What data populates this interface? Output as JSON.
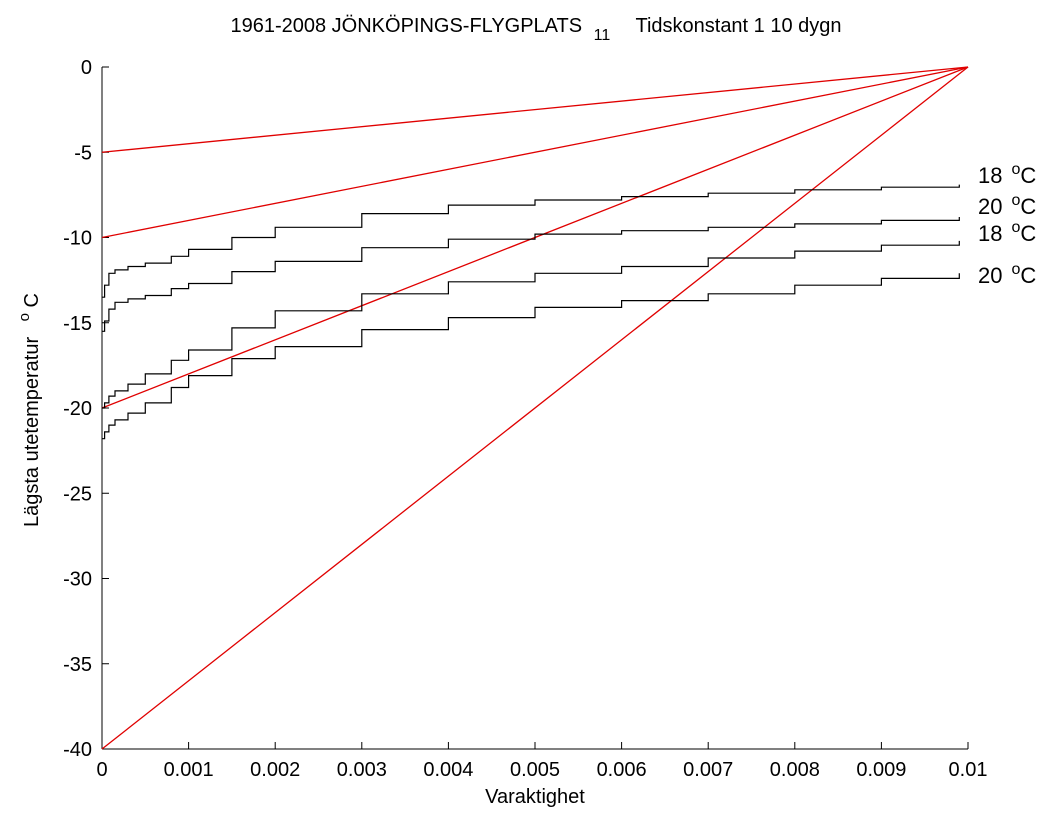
{
  "chart_data": {
    "type": "line",
    "title_parts": {
      "main": "1961-2008  JÖNKÖPINGS-FLYGPLATS",
      "subscript": "11",
      "tail": "Tidskonstant 1 10 dygn"
    },
    "xlabel": "Varaktighet",
    "ylabel": "Lägsta utetemperatur",
    "ylabel_superscript": "o",
    "ylabel_unit": "C",
    "xlim": [
      0,
      0.01
    ],
    "ylim": [
      -40,
      0
    ],
    "xticks": [
      "0",
      "0.001",
      "0.002",
      "0.003",
      "0.004",
      "0.005",
      "0.006",
      "0.007",
      "0.008",
      "0.009",
      "0.01"
    ],
    "yticks": [
      "0",
      "-5",
      "-10",
      "-15",
      "-20",
      "-25",
      "-30",
      "-35",
      "-40"
    ],
    "grid": false,
    "colors": {
      "curves": "#000000",
      "reference_lines": "#e00000",
      "axes": "#000000"
    },
    "curve_series": [
      {
        "label": "18",
        "unit_sup": "o",
        "unit": "C",
        "x": [
          0,
          3e-05,
          8e-05,
          0.00015,
          0.0003,
          0.0005,
          0.0008,
          0.001,
          0.0015,
          0.002,
          0.003,
          0.004,
          0.005,
          0.006,
          0.007,
          0.008,
          0.009,
          0.0099
        ],
        "y": [
          -13.5,
          -12.8,
          -12.1,
          -11.9,
          -11.7,
          -11.5,
          -11.1,
          -10.7,
          -10.0,
          -9.4,
          -8.6,
          -8.1,
          -7.8,
          -7.6,
          -7.4,
          -7.2,
          -7.05,
          -6.9
        ]
      },
      {
        "label": "20",
        "unit_sup": "o",
        "unit": "C",
        "x": [
          0,
          3e-05,
          8e-05,
          0.00015,
          0.0003,
          0.0005,
          0.0008,
          0.001,
          0.0015,
          0.002,
          0.003,
          0.004,
          0.005,
          0.006,
          0.007,
          0.008,
          0.009,
          0.0099
        ],
        "y": [
          -15.5,
          -14.9,
          -14.2,
          -13.8,
          -13.6,
          -13.4,
          -13.0,
          -12.7,
          -12.0,
          -11.4,
          -10.6,
          -10.1,
          -9.8,
          -9.6,
          -9.4,
          -9.2,
          -9.0,
          -8.8
        ]
      },
      {
        "label": "18",
        "unit_sup": "o",
        "unit": "C",
        "x": [
          0,
          3e-05,
          8e-05,
          0.00015,
          0.0003,
          0.0005,
          0.0008,
          0.001,
          0.0015,
          0.002,
          0.003,
          0.004,
          0.005,
          0.006,
          0.007,
          0.008,
          0.009,
          0.0099
        ],
        "y": [
          -20.0,
          -19.7,
          -19.3,
          -19.0,
          -18.6,
          -18.0,
          -17.2,
          -16.6,
          -15.3,
          -14.3,
          -13.3,
          -12.6,
          -12.1,
          -11.7,
          -11.2,
          -10.8,
          -10.45,
          -10.2
        ]
      },
      {
        "label": "20",
        "unit_sup": "o",
        "unit": "C",
        "x": [
          0,
          3e-05,
          8e-05,
          0.00015,
          0.0003,
          0.0005,
          0.0008,
          0.001,
          0.0015,
          0.002,
          0.003,
          0.004,
          0.005,
          0.006,
          0.007,
          0.008,
          0.009,
          0.0099
        ],
        "y": [
          -21.8,
          -21.4,
          -21.0,
          -20.7,
          -20.3,
          -19.7,
          -18.8,
          -18.1,
          -17.1,
          -16.4,
          -15.4,
          -14.7,
          -14.1,
          -13.7,
          -13.3,
          -12.8,
          -12.4,
          -12.1
        ]
      }
    ],
    "reference_lines": [
      {
        "x": [
          0,
          0.01
        ],
        "y": [
          -5,
          0
        ]
      },
      {
        "x": [
          0,
          0.01
        ],
        "y": [
          -10,
          0
        ]
      },
      {
        "x": [
          0,
          0.01
        ],
        "y": [
          -20,
          0
        ]
      },
      {
        "x": [
          0,
          0.01
        ],
        "y": [
          -40,
          0
        ]
      }
    ]
  }
}
